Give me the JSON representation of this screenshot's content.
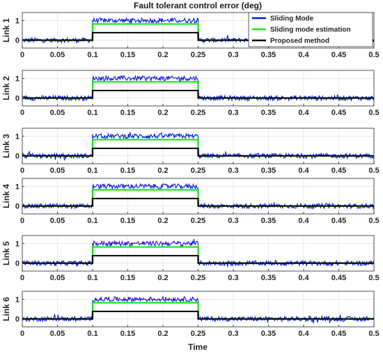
{
  "chart_data": {
    "type": "line",
    "title": "Fault tolerant control error (deg)",
    "xlabel": "Time",
    "xlim": [
      0,
      0.5
    ],
    "ylim": [
      -0.4,
      1.4
    ],
    "xticks": [
      0,
      0.05,
      0.1,
      0.15,
      0.2,
      0.25,
      0.3,
      0.35,
      0.4,
      0.45,
      0.5
    ],
    "yticks": [
      0,
      1
    ],
    "grid": true,
    "legend_position": "top-right",
    "legend": [
      "Sliding Mode",
      "Sliding mode estimation",
      "Proposed method"
    ],
    "colors": {
      "sliding": "#0a14e6",
      "estimation": "#14e614",
      "proposed": "#000000"
    },
    "fault_interval": [
      0.1,
      0.25
    ],
    "subplots": [
      {
        "ylabel": "Link 1",
        "series": [
          {
            "name": "Sliding Mode",
            "baseline": 0,
            "fault_level": 1.0,
            "noise_amplitude": 0.12
          },
          {
            "name": "Sliding mode estimation",
            "baseline": 0,
            "fault_level": 0.82
          },
          {
            "name": "Proposed method",
            "baseline": 0,
            "fault_level": 0.38
          }
        ]
      },
      {
        "ylabel": "Link 2",
        "series": [
          {
            "name": "Sliding Mode",
            "baseline": 0,
            "fault_level": 1.0,
            "noise_amplitude": 0.12
          },
          {
            "name": "Sliding mode estimation",
            "baseline": 0,
            "fault_level": 0.82
          },
          {
            "name": "Proposed method",
            "baseline": 0,
            "fault_level": 0.38
          }
        ]
      },
      {
        "ylabel": "Link 3",
        "series": [
          {
            "name": "Sliding Mode",
            "baseline": 0,
            "fault_level": 1.0,
            "noise_amplitude": 0.12
          },
          {
            "name": "Sliding mode estimation",
            "baseline": 0,
            "fault_level": 0.82
          },
          {
            "name": "Proposed method",
            "baseline": 0,
            "fault_level": 0.38
          }
        ]
      },
      {
        "ylabel": "Link 4",
        "series": [
          {
            "name": "Sliding Mode",
            "baseline": 0,
            "fault_level": 1.0,
            "noise_amplitude": 0.12
          },
          {
            "name": "Sliding mode estimation",
            "baseline": 0,
            "fault_level": 0.82
          },
          {
            "name": "Proposed method",
            "baseline": 0,
            "fault_level": 0.38
          }
        ]
      },
      {
        "ylabel": "Link 5",
        "series": [
          {
            "name": "Sliding Mode",
            "baseline": 0,
            "fault_level": 1.0,
            "noise_amplitude": 0.12
          },
          {
            "name": "Sliding mode estimation",
            "baseline": 0,
            "fault_level": 0.82
          },
          {
            "name": "Proposed method",
            "baseline": 0,
            "fault_level": 0.38
          }
        ]
      },
      {
        "ylabel": "Link 6",
        "series": [
          {
            "name": "Sliding Mode",
            "baseline": 0,
            "fault_level": 1.0,
            "noise_amplitude": 0.12
          },
          {
            "name": "Sliding mode estimation",
            "baseline": 0,
            "fault_level": 0.82
          },
          {
            "name": "Proposed method",
            "baseline": 0,
            "fault_level": 0.38
          }
        ]
      }
    ]
  }
}
